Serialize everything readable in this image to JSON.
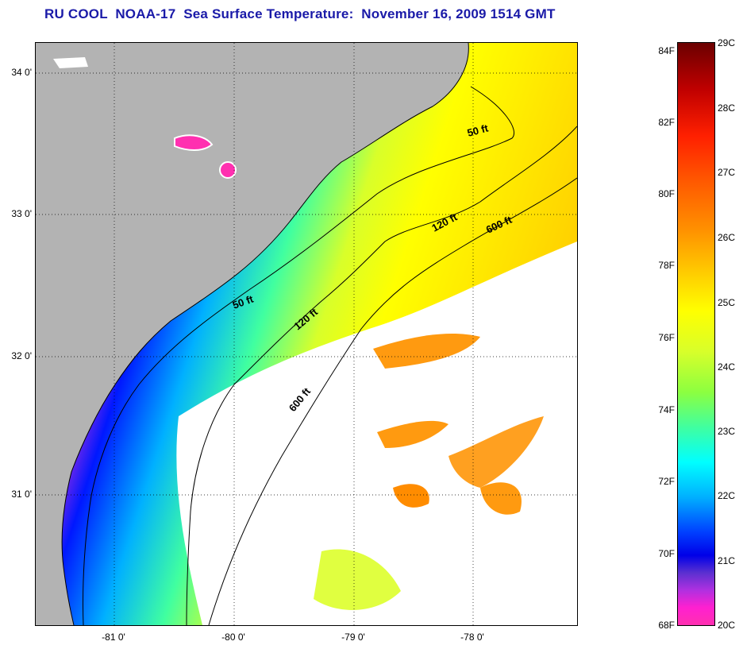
{
  "title": "RU COOL  NOAA-17  Sea Surface Temperature:  November 16, 2009 1514 GMT",
  "map": {
    "lat_labels": [
      "34 0'",
      "33 0'",
      "32 0'",
      "31 0'"
    ],
    "lon_labels": [
      "-81 0'",
      "-80 0'",
      "-79 0'",
      "-78 0'"
    ],
    "contour_labels": [
      "50 ft",
      "50 ft",
      "120 ft",
      "120 ft",
      "600 ft",
      "600 ft"
    ],
    "colors": {
      "land": "#b3b3b3",
      "cool": "#ff30b0",
      "cold": "#0018ff",
      "warm": "#ffff00",
      "hot": "#ff8c00"
    }
  },
  "colorbar": {
    "fahrenheit": [
      "84F",
      "82F",
      "80F",
      "78F",
      "76F",
      "74F",
      "72F",
      "70F",
      "68F"
    ],
    "celsius": [
      "29C",
      "28C",
      "27C",
      "26C",
      "25C",
      "24C",
      "23C",
      "22C",
      "21C",
      "20C"
    ]
  }
}
